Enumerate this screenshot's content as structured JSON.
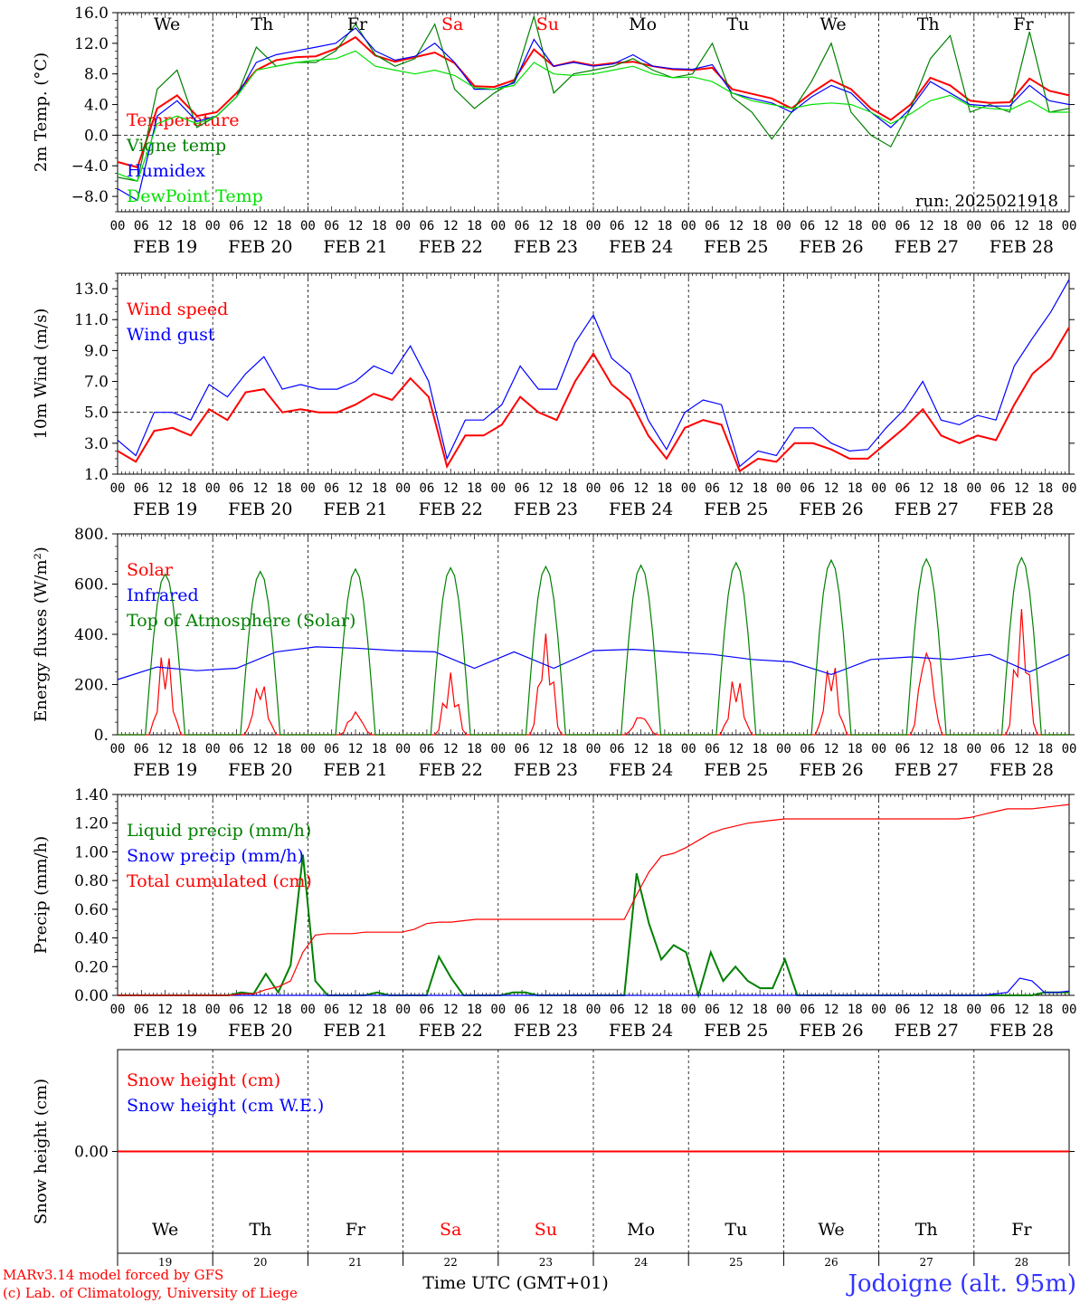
{
  "days": [
    "We",
    "Th",
    "Fr",
    "Sa",
    "Su",
    "Mo",
    "Tu",
    "We",
    "Th",
    "Fr"
  ],
  "day_colors": [
    "#000000",
    "#000000",
    "#000000",
    "#ff0000",
    "#ff0000",
    "#000000",
    "#000000",
    "#000000",
    "#000000",
    "#000000"
  ],
  "dates": [
    "FEB 19",
    "FEB 20",
    "FEB 21",
    "FEB 22",
    "FEB 23",
    "FEB 24",
    "FEB 25",
    "FEB 26",
    "FEB 27",
    "FEB 28"
  ],
  "date_numbers": [
    "19",
    "20",
    "21",
    "22",
    "23",
    "24",
    "25",
    "26",
    "27",
    "28"
  ],
  "hour_ticks": [
    "00",
    "06",
    "12",
    "18"
  ],
  "footer": {
    "credit_line1": "MARv3.14 model forced by GFS",
    "credit_line2": "(c) Lab. of Climatology, University of Liege",
    "xlabel": "Time UTC (GMT+01)",
    "location": "Jodoigne (alt. 95m)"
  },
  "colors": {
    "red": "#ff0000",
    "green": "#008000",
    "blue": "#0000ff",
    "lime": "#00e000"
  },
  "chart_data": [
    {
      "type": "line",
      "ylabel": "2m Temp. (°C)",
      "ylim": [
        -10,
        16
      ],
      "yticks": [
        "16.0",
        "12.0",
        "8.0",
        "4.0",
        "0.0",
        "−4.0",
        "−8.0"
      ],
      "ytick_values": [
        16,
        12,
        8,
        4,
        0,
        -4,
        -8
      ],
      "dashed_level": 0,
      "annotation": "run: 2025021918",
      "x_hours_step": 6,
      "series": [
        {
          "name": "Temperature",
          "color": "#ff0000",
          "values": [
            -3.5,
            -4.2,
            3.5,
            5.2,
            2.5,
            3.0,
            5.5,
            8.5,
            9.8,
            10.2,
            10.3,
            11.3,
            12.8,
            10.4,
            9.6,
            10.2,
            10.8,
            9.4,
            6.4,
            6.3,
            7.2,
            11.2,
            9.0,
            9.6,
            9.1,
            9.4,
            9.6,
            9.0,
            8.6,
            8.5,
            8.8,
            6.0,
            5.4,
            4.8,
            3.5,
            5.5,
            7.2,
            6.0,
            3.5,
            2.0,
            4.0,
            7.5,
            6.5,
            4.5,
            4.2,
            4.3,
            7.4,
            5.8,
            5.2
          ]
        },
        {
          "name": "Vigne temp",
          "color": "#008000",
          "values": [
            -5.5,
            -6.0,
            6.0,
            8.5,
            1.0,
            2.5,
            5.0,
            11.5,
            9.0,
            9.5,
            9.5,
            11.0,
            14.5,
            10.5,
            9.0,
            10.0,
            14.5,
            6.0,
            3.5,
            5.5,
            7.0,
            15.5,
            5.5,
            8.0,
            8.5,
            9.0,
            10.0,
            8.5,
            7.5,
            8.0,
            12.0,
            5.0,
            3.0,
            -0.5,
            3.0,
            7.0,
            12.0,
            3.0,
            0.0,
            -1.5,
            3.5,
            10.0,
            13.0,
            3.0,
            4.0,
            3.0,
            13.5,
            3.0,
            3.5
          ]
        },
        {
          "name": "Humidex",
          "color": "#0000ff",
          "values": [
            -7.0,
            -8.5,
            2.5,
            4.5,
            1.8,
            2.5,
            5.0,
            9.5,
            10.5,
            11.0,
            11.5,
            12.0,
            14.0,
            11.0,
            9.8,
            10.3,
            12.0,
            9.5,
            6.0,
            6.0,
            6.8,
            12.5,
            9.0,
            9.5,
            9.0,
            9.3,
            10.5,
            9.0,
            8.7,
            8.6,
            9.2,
            5.5,
            4.8,
            4.2,
            3.0,
            5.0,
            6.5,
            5.5,
            3.0,
            1.0,
            3.5,
            7.0,
            5.5,
            4.0,
            3.8,
            3.8,
            6.5,
            4.5,
            4.0
          ]
        },
        {
          "name": "DewPoint Temp",
          "color": "#00e000",
          "values": [
            -5.0,
            -6.0,
            1.5,
            2.5,
            1.5,
            2.5,
            5.0,
            8.5,
            9.0,
            9.5,
            9.8,
            10.0,
            11.0,
            9.0,
            8.5,
            8.0,
            8.5,
            7.8,
            6.2,
            6.0,
            6.5,
            9.5,
            8.0,
            7.8,
            8.0,
            8.5,
            9.0,
            8.0,
            7.5,
            7.6,
            7.0,
            5.5,
            4.5,
            4.0,
            3.5,
            4.0,
            4.2,
            4.0,
            3.0,
            1.5,
            2.8,
            4.5,
            5.2,
            3.8,
            3.5,
            3.3,
            4.5,
            3.0,
            3.0
          ]
        }
      ]
    },
    {
      "type": "line",
      "ylabel": "10m Wind (m/s)",
      "ylim": [
        1,
        14
      ],
      "yticks": [
        "13.0",
        "11.0",
        "9.0",
        "7.0",
        "5.0",
        "3.0",
        "1.0"
      ],
      "ytick_values": [
        13,
        11,
        9,
        7,
        5,
        3,
        1
      ],
      "dashed_level": 5,
      "x_hours_step": 6,
      "series": [
        {
          "name": "Wind speed",
          "color": "#ff0000",
          "values": [
            2.5,
            1.8,
            3.8,
            4.0,
            3.5,
            5.2,
            4.5,
            6.3,
            6.5,
            5.0,
            5.2,
            5.0,
            5.0,
            5.5,
            6.2,
            5.8,
            7.2,
            6.0,
            1.5,
            3.5,
            3.5,
            4.2,
            6.0,
            5.0,
            4.5,
            7.0,
            8.8,
            6.8,
            5.8,
            3.5,
            2.0,
            4.0,
            4.5,
            4.2,
            1.2,
            2.0,
            1.8,
            3.0,
            3.0,
            2.6,
            2.0,
            2.0,
            3.0,
            4.0,
            5.2,
            3.5,
            3.0,
            3.5,
            3.2,
            5.5,
            7.5,
            8.5,
            10.5
          ]
        },
        {
          "name": "Wind gust",
          "color": "#0000ff",
          "values": [
            3.2,
            2.2,
            5.0,
            5.0,
            4.5,
            6.8,
            6.0,
            7.5,
            8.6,
            6.5,
            6.8,
            6.5,
            6.5,
            7.0,
            8.0,
            7.5,
            9.3,
            7.0,
            2.0,
            4.5,
            4.5,
            5.5,
            8.0,
            6.5,
            6.5,
            9.5,
            11.3,
            8.5,
            7.5,
            4.5,
            2.6,
            5.0,
            5.8,
            5.5,
            1.5,
            2.5,
            2.2,
            4.0,
            4.0,
            3.0,
            2.5,
            2.6,
            4.0,
            5.2,
            7.0,
            4.5,
            4.2,
            4.8,
            4.5,
            8.0,
            9.8,
            11.5,
            13.6
          ]
        }
      ]
    },
    {
      "type": "line",
      "ylabel": "Energy fluxes (W/m²)",
      "ylim": [
        0,
        800
      ],
      "yticks": [
        "800.",
        "600.",
        "400.",
        "200.",
        "0."
      ],
      "ytick_values": [
        800,
        600,
        400,
        200,
        0
      ],
      "x_hours_step": 1,
      "series": [
        {
          "name": "Solar",
          "color": "#ff0000",
          "peaks": [
            360,
            240,
            110,
            250,
            430,
            95,
            250,
            320,
            430,
            520
          ]
        },
        {
          "name": "Infrared",
          "color": "#0000ff",
          "values": [
            220,
            270,
            255,
            265,
            330,
            350,
            345,
            335,
            330,
            265,
            330,
            265,
            335,
            340,
            330,
            320,
            300,
            290,
            240,
            300,
            310,
            300,
            320,
            250,
            320
          ]
        },
        {
          "name": "Top of Atmosphere (Solar)",
          "color": "#008000",
          "peaks": [
            640,
            650,
            660,
            665,
            670,
            675,
            685,
            695,
            700,
            705
          ]
        }
      ]
    },
    {
      "type": "line",
      "ylabel": "Precip (mm/h)",
      "ylim": [
        0,
        1.4
      ],
      "yticks": [
        "1.40",
        "1.20",
        "1.00",
        "0.80",
        "0.60",
        "0.40",
        "0.20",
        "0.00"
      ],
      "ytick_values": [
        1.4,
        1.2,
        1.0,
        0.8,
        0.6,
        0.4,
        0.2,
        0
      ],
      "x_hours_step": 6,
      "series": [
        {
          "name": "Liquid precip (mm/h)",
          "color": "#008000",
          "values": [
            0,
            0,
            0,
            0,
            0,
            0,
            0,
            0,
            0,
            0,
            0.02,
            0.01,
            0.15,
            0.02,
            0.21,
            0.98,
            0.1,
            0,
            0,
            0,
            0,
            0.02,
            0,
            0,
            0,
            0,
            0.27,
            0.12,
            0,
            0,
            0,
            0,
            0.02,
            0.02,
            0,
            0,
            0,
            0,
            0,
            0,
            0,
            0,
            0.85,
            0.5,
            0.25,
            0.35,
            0.3,
            0,
            0.3,
            0.1,
            0.2,
            0.1,
            0.05,
            0.05,
            0.25,
            0,
            0,
            0,
            0,
            0,
            0,
            0,
            0,
            0,
            0,
            0,
            0,
            0,
            0,
            0,
            0,
            0,
            0,
            0,
            0,
            0.02,
            0.02,
            0.02
          ]
        },
        {
          "name": "Snow precip (mm/h)",
          "color": "#0000ff",
          "values": [
            0,
            0,
            0,
            0,
            0,
            0,
            0,
            0,
            0,
            0,
            0,
            0,
            0,
            0,
            0,
            0,
            0,
            0,
            0,
            0,
            0,
            0,
            0,
            0,
            0,
            0,
            0,
            0,
            0,
            0,
            0,
            0,
            0,
            0,
            0,
            0,
            0,
            0,
            0,
            0,
            0,
            0,
            0,
            0,
            0,
            0,
            0,
            0,
            0,
            0,
            0,
            0,
            0,
            0,
            0,
            0,
            0,
            0,
            0,
            0,
            0,
            0,
            0,
            0,
            0,
            0,
            0,
            0,
            0,
            0,
            0,
            0.01,
            0.02,
            0.12,
            0.1,
            0.02,
            0.02,
            0.03
          ]
        },
        {
          "name": "Total cumulated (cm)",
          "color": "#ff0000",
          "values": [
            0,
            0,
            0,
            0,
            0,
            0,
            0,
            0,
            0,
            0,
            0.01,
            0.01,
            0.04,
            0.06,
            0.1,
            0.3,
            0.42,
            0.43,
            0.43,
            0.43,
            0.44,
            0.44,
            0.44,
            0.44,
            0.46,
            0.5,
            0.51,
            0.51,
            0.52,
            0.53,
            0.53,
            0.53,
            0.53,
            0.53,
            0.53,
            0.53,
            0.53,
            0.53,
            0.53,
            0.53,
            0.53,
            0.53,
            0.7,
            0.86,
            0.97,
            0.99,
            1.03,
            1.08,
            1.13,
            1.16,
            1.18,
            1.2,
            1.21,
            1.22,
            1.23,
            1.23,
            1.23,
            1.23,
            1.23,
            1.23,
            1.23,
            1.23,
            1.23,
            1.23,
            1.23,
            1.23,
            1.23,
            1.23,
            1.23,
            1.24,
            1.26,
            1.28,
            1.3,
            1.3,
            1.3,
            1.31,
            1.32,
            1.33
          ]
        }
      ]
    },
    {
      "type": "line",
      "ylabel": "Snow height (cm)",
      "ylim": [
        -1,
        1
      ],
      "yticks": [
        "0.00"
      ],
      "ytick_values": [
        0
      ],
      "x_hours_step": 6,
      "series": [
        {
          "name": "Snow height (cm)",
          "color": "#ff0000",
          "values": [
            0,
            0
          ]
        },
        {
          "name": "Snow height (cm W.E.)",
          "color": "#0000ff",
          "values": [
            0,
            0
          ]
        }
      ]
    }
  ]
}
